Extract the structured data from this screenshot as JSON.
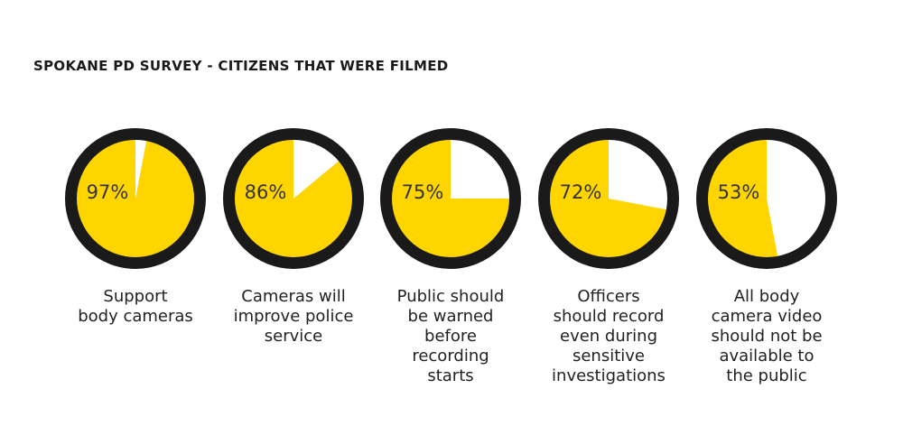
{
  "chart_data": {
    "type": "pie",
    "title": "SPOKANE PD SURVEY - CITIZENS THAT WERE FILMED",
    "categories": [
      "Support\nbody cameras",
      "Cameras will\nimprove police\nservice",
      "Public should\nbe warned\nbefore\nrecording\nstarts",
      "Officers\nshould record\neven during\nsensitive\ninvestigations",
      "All body\ncamera video\nshould not be\navailable to\nthe public"
    ],
    "values": [
      97,
      86,
      75,
      72,
      53
    ],
    "value_labels": [
      "97%",
      "86%",
      "75%",
      "72%",
      "53%"
    ],
    "color": "#ffd500"
  }
}
